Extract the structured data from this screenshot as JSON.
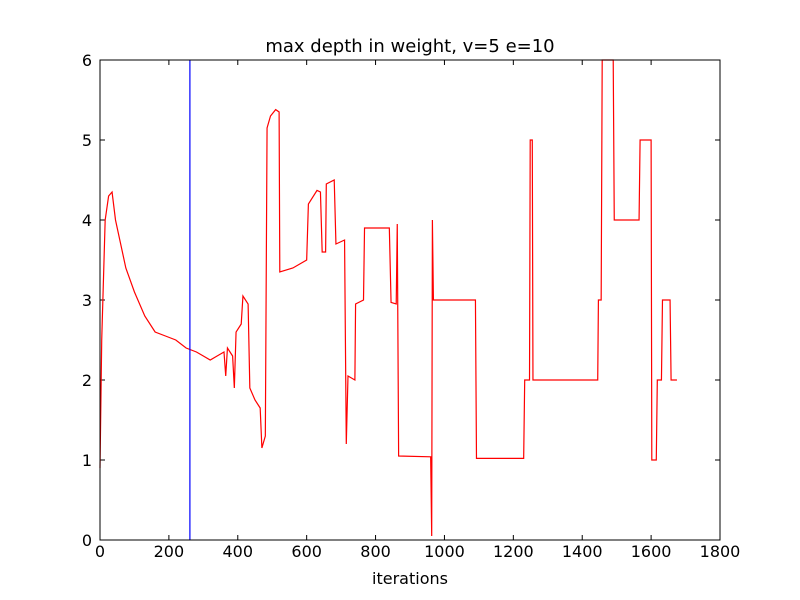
{
  "chart_data": {
    "type": "line",
    "title": "max depth in weight, v=5 e=10",
    "x_label": "iterations",
    "x": [
      0,
      5,
      15,
      25,
      35,
      45,
      60,
      75,
      100,
      130,
      160,
      190,
      220,
      250,
      280,
      300,
      320,
      340,
      360,
      365,
      370,
      385,
      390,
      395,
      410,
      415,
      430,
      435,
      450,
      465,
      470,
      480,
      485,
      495,
      510,
      520,
      522,
      560,
      600,
      605,
      630,
      640,
      645,
      655,
      657,
      680,
      685,
      710,
      715,
      720,
      740,
      742,
      765,
      768,
      840,
      845,
      860,
      863,
      867,
      960,
      963,
      965,
      968,
      1090,
      1093,
      1230,
      1233,
      1247,
      1249,
      1255,
      1257,
      1445,
      1447,
      1455,
      1458,
      1490,
      1493,
      1565,
      1568,
      1600,
      1602,
      1615,
      1618,
      1630,
      1633,
      1655,
      1658,
      1675
    ],
    "series": [
      {
        "name": "max depth",
        "color": "#ff0000",
        "values": [
          0.9,
          2.5,
          4.0,
          4.3,
          4.35,
          4.0,
          3.7,
          3.4,
          3.1,
          2.8,
          2.6,
          2.55,
          2.5,
          2.4,
          2.35,
          2.3,
          2.25,
          2.3,
          2.35,
          2.05,
          2.4,
          2.3,
          1.9,
          2.6,
          2.7,
          3.05,
          2.95,
          1.9,
          1.75,
          1.65,
          1.15,
          1.3,
          5.15,
          5.3,
          5.38,
          5.35,
          3.35,
          3.4,
          3.5,
          4.2,
          4.37,
          4.35,
          3.6,
          3.6,
          4.45,
          4.5,
          3.7,
          3.75,
          1.2,
          2.05,
          2.0,
          2.95,
          3.0,
          3.9,
          3.9,
          2.97,
          2.95,
          3.95,
          1.05,
          1.04,
          0.05,
          4.0,
          3.0,
          3.0,
          1.02,
          1.02,
          2.0,
          2.0,
          5.0,
          5.0,
          2.0,
          2.0,
          3.0,
          3.0,
          6.0,
          6.0,
          4.0,
          4.0,
          5.0,
          5.0,
          1.0,
          1.0,
          2.0,
          2.0,
          3.0,
          3.0,
          2.0,
          2.0
        ]
      }
    ],
    "vline": {
      "x": 261,
      "color": "#0000ff"
    },
    "xlim": [
      0,
      1800
    ],
    "xticks": [
      0,
      200,
      400,
      600,
      800,
      1000,
      1200,
      1400,
      1600,
      1800
    ],
    "ylim": [
      0,
      6
    ],
    "yticks": [
      0,
      1,
      2,
      3,
      4,
      5,
      6
    ]
  }
}
